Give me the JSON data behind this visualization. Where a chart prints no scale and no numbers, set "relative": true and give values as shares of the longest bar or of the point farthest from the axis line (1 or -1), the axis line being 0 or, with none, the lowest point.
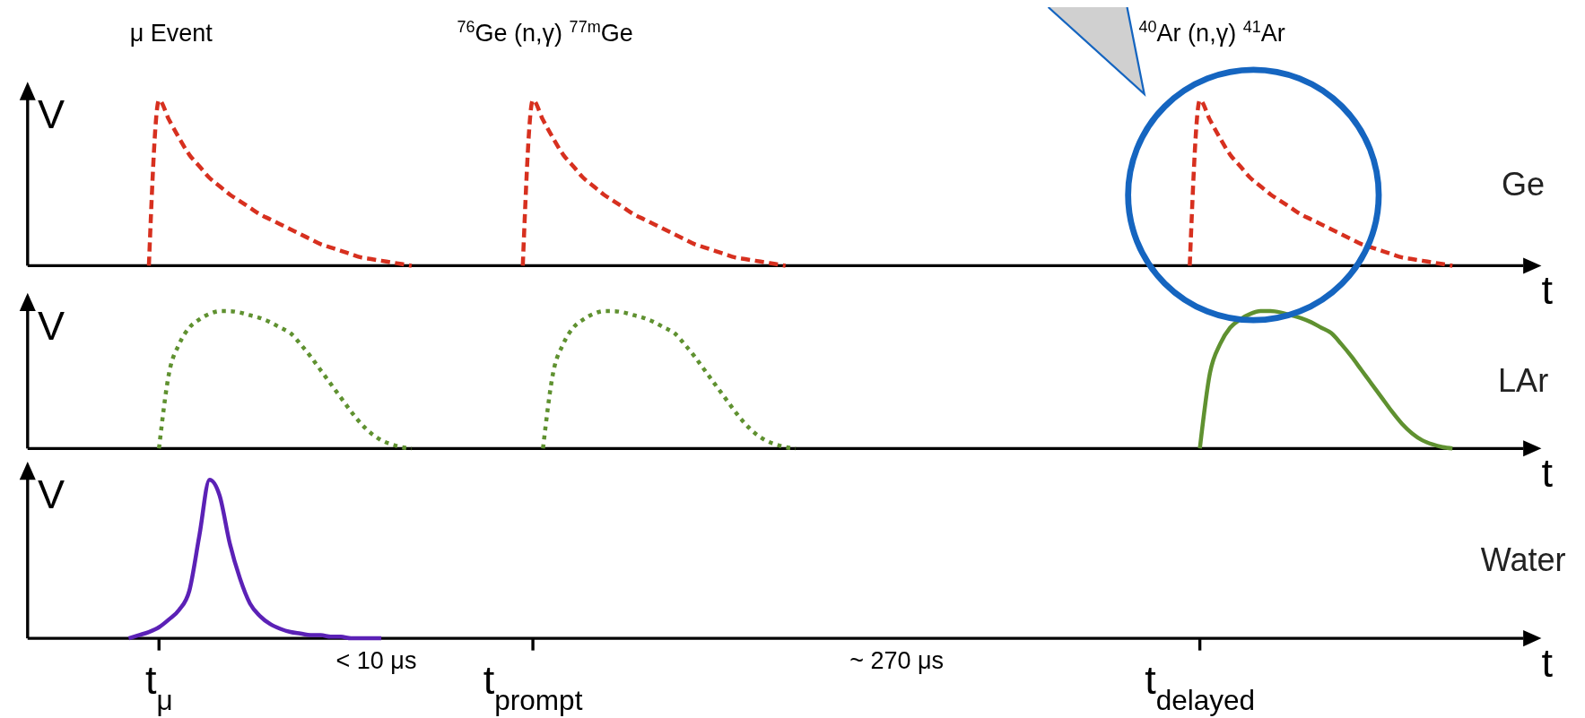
{
  "chart_data": [
    {
      "type": "line",
      "title": "Ge",
      "ylabel": "V",
      "xlabel": "t",
      "relative": true,
      "tick_labels": false,
      "line_style": "dashed",
      "categories": [
        null,
        null,
        null,
        null,
        null,
        null,
        null,
        null,
        null,
        null,
        null,
        null,
        null,
        null,
        null,
        null,
        null,
        null,
        null,
        null,
        null,
        null,
        null,
        null,
        null,
        null,
        null,
        null,
        null,
        null,
        null,
        null,
        null,
        null,
        null,
        null,
        null,
        null,
        null,
        null,
        null,
        null,
        null,
        null,
        null,
        null,
        null,
        null,
        null,
        null,
        null,
        null,
        null,
        null,
        null,
        null,
        null,
        null,
        null,
        null,
        null,
        null,
        null,
        null,
        null,
        null,
        null,
        null,
        null,
        null,
        null,
        null,
        null,
        null,
        null,
        null,
        null,
        null,
        null,
        null,
        null,
        null,
        null,
        null,
        null,
        null,
        null,
        null,
        null,
        null,
        null,
        null,
        null,
        null,
        null,
        null,
        null,
        null,
        null,
        null,
        null,
        null,
        null,
        null,
        null,
        null,
        null,
        null,
        null,
        null,
        null,
        null,
        null,
        null,
        null,
        null,
        null,
        null,
        null,
        null,
        null,
        null,
        null,
        null,
        null,
        null,
        null,
        null,
        null,
        null,
        null,
        null,
        null,
        null,
        null,
        null,
        null,
        null,
        null,
        null,
        null,
        null,
        null,
        null,
        null,
        null,
        null,
        null,
        null
      ],
      "annotations": [
        "μ Event",
        "$^{76}$Ge (n,γ) $^{77m}$Ge",
        "$^{40}$Ar (n,γ) $^{41}$Ar"
      ],
      "series": [
        {
          "color": "#d7301f",
          "values": [
            null,
            null,
            null,
            null,
            null,
            null,
            null,
            null,
            null,
            null,
            null,
            null,
            0,
            1,
            0.88,
            0.77,
            0.67,
            0.6,
            0.53,
            0.48,
            0.43,
            0.39,
            0.35,
            0.31,
            0.28,
            0.25,
            0.22,
            0.19,
            0.16,
            0.13,
            0.11,
            0.09,
            0.07,
            0.05,
            0.04,
            0.03,
            0.02,
            0.01,
            0,
            null,
            null,
            null,
            null,
            null,
            null,
            null,
            null,
            null,
            null,
            null,
            null,
            null,
            null,
            null,
            null,
            null,
            null,
            null,
            null,
            null,
            null,
            null,
            null,
            null,
            null,
            null,
            null,
            null,
            null,
            null,
            null,
            null,
            null,
            null,
            null,
            null,
            null,
            null,
            null,
            null,
            null,
            null,
            null,
            null,
            null,
            null,
            null,
            null,
            null,
            null,
            null,
            null,
            null,
            null,
            null,
            null,
            null,
            null,
            null,
            null,
            null,
            null,
            null,
            null,
            null,
            null,
            null,
            null,
            null,
            null,
            null,
            null,
            null,
            null,
            null,
            null,
            null,
            null,
            null,
            null,
            null,
            null,
            null,
            null,
            null,
            null,
            null,
            null,
            null,
            null,
            null,
            null,
            null,
            null,
            null,
            null,
            null,
            null,
            null,
            null,
            null,
            null,
            null,
            null,
            null,
            null,
            null,
            null,
            null
          ]
        },
        {
          "color": "#d7301f",
          "values": [
            null,
            null,
            null,
            null,
            null,
            null,
            null,
            null,
            null,
            null,
            null,
            null,
            null,
            null,
            null,
            null,
            null,
            null,
            null,
            null,
            null,
            null,
            null,
            null,
            null,
            null,
            null,
            null,
            null,
            null,
            null,
            null,
            null,
            null,
            null,
            null,
            null,
            null,
            null,
            null,
            null,
            null,
            null,
            null,
            null,
            null,
            null,
            null,
            null,
            0,
            1,
            0.88,
            0.77,
            0.67,
            0.6,
            0.53,
            0.48,
            0.43,
            0.39,
            0.35,
            0.31,
            0.28,
            0.25,
            0.22,
            0.19,
            0.16,
            0.13,
            0.11,
            0.09,
            0.07,
            0.05,
            0.04,
            0.03,
            0.02,
            0.01,
            0,
            null,
            null,
            null,
            null,
            null,
            null,
            null,
            null,
            null,
            null,
            null,
            null,
            null,
            null,
            null,
            null,
            null,
            null,
            null,
            null,
            null,
            null,
            null,
            null,
            null,
            null,
            null,
            null,
            null,
            null,
            null,
            null,
            null,
            null,
            null,
            null,
            null,
            null,
            null,
            null,
            null,
            null,
            null,
            null,
            null,
            null,
            null,
            null,
            null,
            null,
            null,
            null,
            null,
            null,
            null,
            null,
            null,
            null,
            null,
            null,
            null,
            null,
            null,
            null,
            null,
            null,
            null,
            null,
            null,
            null,
            null,
            null,
            null
          ]
        },
        {
          "color": "#d7301f",
          "values": [
            null,
            null,
            null,
            null,
            null,
            null,
            null,
            null,
            null,
            null,
            null,
            null,
            null,
            null,
            null,
            null,
            null,
            null,
            null,
            null,
            null,
            null,
            null,
            null,
            null,
            null,
            null,
            null,
            null,
            null,
            null,
            null,
            null,
            null,
            null,
            null,
            null,
            null,
            null,
            null,
            null,
            null,
            null,
            null,
            null,
            null,
            null,
            null,
            null,
            null,
            null,
            null,
            null,
            null,
            null,
            null,
            null,
            null,
            null,
            null,
            null,
            null,
            null,
            null,
            null,
            null,
            null,
            null,
            null,
            null,
            null,
            null,
            null,
            null,
            null,
            null,
            null,
            null,
            null,
            null,
            null,
            null,
            null,
            null,
            null,
            null,
            null,
            null,
            null,
            null,
            null,
            null,
            null,
            null,
            null,
            null,
            null,
            null,
            null,
            null,
            null,
            null,
            null,
            null,
            null,
            null,
            null,
            null,
            null,
            null,
            null,
            null,
            null,
            null,
            null,
            0,
            1,
            0.88,
            0.77,
            0.67,
            0.6,
            0.53,
            0.48,
            0.43,
            0.39,
            0.35,
            0.31,
            0.28,
            0.25,
            0.22,
            0.19,
            0.16,
            0.13,
            0.11,
            0.09,
            0.07,
            0.05,
            0.04,
            0.03,
            0.02,
            0.01,
            0,
            null,
            null,
            null,
            null,
            null,
            null,
            null
          ]
        }
      ]
    },
    {
      "type": "line",
      "title": "LAr",
      "ylabel": "V",
      "xlabel": "t",
      "relative": true,
      "tick_labels": false,
      "categories": [
        null,
        null,
        null,
        null,
        null,
        null,
        null,
        null,
        null,
        null,
        null,
        null,
        null,
        null,
        null,
        null,
        null,
        null,
        null,
        null,
        null,
        null,
        null,
        null,
        null,
        null,
        null,
        null,
        null,
        null,
        null,
        null,
        null,
        null,
        null,
        null,
        null,
        null,
        null,
        null,
        null,
        null,
        null,
        null,
        null,
        null,
        null,
        null,
        null,
        null,
        null,
        null,
        null,
        null,
        null,
        null,
        null,
        null,
        null,
        null,
        null,
        null,
        null,
        null,
        null,
        null,
        null,
        null,
        null,
        null,
        null,
        null,
        null,
        null,
        null,
        null,
        null,
        null,
        null,
        null,
        null,
        null,
        null,
        null,
        null,
        null,
        null,
        null,
        null,
        null,
        null,
        null,
        null,
        null,
        null,
        null,
        null,
        null,
        null,
        null,
        null,
        null,
        null,
        null,
        null,
        null,
        null,
        null,
        null,
        null,
        null,
        null,
        null,
        null,
        null,
        null,
        null,
        null,
        null,
        null,
        null,
        null,
        null,
        null,
        null,
        null,
        null,
        null,
        null,
        null,
        null,
        null,
        null,
        null,
        null,
        null,
        null,
        null,
        null,
        null,
        null,
        null,
        null,
        null,
        null,
        null,
        null,
        null,
        null
      ],
      "series": [
        {
          "color": "#5f9130",
          "line_style": "dotted",
          "values": [
            null,
            null,
            null,
            null,
            null,
            null,
            null,
            null,
            null,
            null,
            null,
            null,
            null,
            0,
            0.55,
            0.76,
            0.88,
            0.94,
            0.98,
            1,
            1,
            0.99,
            0.97,
            0.95,
            0.92,
            0.88,
            0.84,
            0.76,
            0.67,
            0.57,
            0.47,
            0.37,
            0.27,
            0.18,
            0.11,
            0.06,
            0.03,
            0.01,
            0,
            null,
            null,
            null,
            null,
            null,
            null,
            null,
            null,
            null,
            null,
            null,
            null,
            null,
            null,
            null,
            null,
            null,
            null,
            null,
            null,
            null,
            null,
            null,
            null,
            null,
            null,
            null,
            null,
            null,
            null,
            null,
            null,
            null,
            null,
            null,
            null,
            null,
            null,
            null,
            null,
            null,
            null,
            null,
            null,
            null,
            null,
            null,
            null,
            null,
            null,
            null,
            null,
            null,
            null,
            null,
            null,
            null,
            null,
            null,
            null,
            null,
            null,
            null,
            null,
            null,
            null,
            null,
            null,
            null,
            null,
            null,
            null,
            null,
            null,
            null,
            null,
            null,
            null,
            null,
            null,
            null,
            null,
            null,
            null,
            null,
            null,
            null,
            null,
            null,
            null,
            null,
            null,
            null,
            null,
            null,
            null,
            null,
            null,
            null,
            null,
            null,
            null,
            null,
            null,
            null,
            null,
            null,
            null,
            null,
            null
          ]
        },
        {
          "color": "#5f9130",
          "line_style": "dotted",
          "values": [
            null,
            null,
            null,
            null,
            null,
            null,
            null,
            null,
            null,
            null,
            null,
            null,
            null,
            null,
            null,
            null,
            null,
            null,
            null,
            null,
            null,
            null,
            null,
            null,
            null,
            null,
            null,
            null,
            null,
            null,
            null,
            null,
            null,
            null,
            null,
            null,
            null,
            null,
            null,
            null,
            null,
            null,
            null,
            null,
            null,
            null,
            null,
            null,
            null,
            null,
            null,
            0,
            0.55,
            0.76,
            0.88,
            0.94,
            0.98,
            1,
            1,
            0.99,
            0.97,
            0.95,
            0.92,
            0.88,
            0.84,
            0.76,
            0.67,
            0.57,
            0.47,
            0.37,
            0.27,
            0.18,
            0.11,
            0.06,
            0.03,
            0.01,
            0,
            null,
            null,
            null,
            null,
            null,
            null,
            null,
            null,
            null,
            null,
            null,
            null,
            null,
            null,
            null,
            null,
            null,
            null,
            null,
            null,
            null,
            null,
            null,
            null,
            null,
            null,
            null,
            null,
            null,
            null,
            null,
            null,
            null,
            null,
            null,
            null,
            null,
            null,
            null,
            null,
            null,
            null,
            null,
            null,
            null,
            null,
            null,
            null,
            null,
            null,
            null,
            null,
            null,
            null,
            null,
            null,
            null,
            null,
            null,
            null,
            null,
            null,
            null,
            null,
            null,
            null,
            null,
            null,
            null,
            null,
            null,
            null
          ]
        },
        {
          "color": "#5f9130",
          "line_style": "solid",
          "values": [
            null,
            null,
            null,
            null,
            null,
            null,
            null,
            null,
            null,
            null,
            null,
            null,
            null,
            null,
            null,
            null,
            null,
            null,
            null,
            null,
            null,
            null,
            null,
            null,
            null,
            null,
            null,
            null,
            null,
            null,
            null,
            null,
            null,
            null,
            null,
            null,
            null,
            null,
            null,
            null,
            null,
            null,
            null,
            null,
            null,
            null,
            null,
            null,
            null,
            null,
            null,
            null,
            null,
            null,
            null,
            null,
            null,
            null,
            null,
            null,
            null,
            null,
            null,
            null,
            null,
            null,
            null,
            null,
            null,
            null,
            null,
            null,
            null,
            null,
            null,
            null,
            null,
            null,
            null,
            null,
            null,
            null,
            null,
            null,
            null,
            null,
            null,
            null,
            null,
            null,
            null,
            null,
            null,
            null,
            null,
            null,
            null,
            null,
            null,
            null,
            null,
            null,
            null,
            null,
            null,
            null,
            null,
            null,
            null,
            null,
            null,
            null,
            null,
            null,
            null,
            null,
            0,
            0.55,
            0.76,
            0.88,
            0.94,
            0.98,
            1,
            1,
            0.99,
            0.97,
            0.95,
            0.92,
            0.88,
            0.84,
            0.76,
            0.67,
            0.57,
            0.47,
            0.37,
            0.27,
            0.18,
            0.11,
            0.06,
            0.03,
            0.01,
            0,
            null,
            null,
            null,
            null,
            null,
            null,
            null
          ]
        }
      ]
    },
    {
      "type": "line",
      "title": "Water",
      "ylabel": "V",
      "xlabel": "t",
      "relative": true,
      "tick_labels": "x",
      "line_style": "solid",
      "categories": [
        null,
        null,
        null,
        null,
        null,
        null,
        null,
        null,
        null,
        null,
        null,
        null,
        null,
        "t$_{μ}$",
        null,
        null,
        null,
        null,
        null,
        null,
        null,
        null,
        null,
        null,
        null,
        null,
        null,
        null,
        null,
        null,
        null,
        null,
        null,
        null,
        null,
        null,
        null,
        null,
        null,
        null,
        null,
        null,
        null,
        null,
        null,
        null,
        null,
        null,
        null,
        null,
        "t$_{prompt}$",
        null,
        null,
        null,
        null,
        null,
        null,
        null,
        null,
        null,
        null,
        null,
        null,
        null,
        null,
        null,
        null,
        null,
        null,
        null,
        null,
        null,
        null,
        null,
        null,
        null,
        null,
        null,
        null,
        null,
        null,
        null,
        null,
        null,
        null,
        null,
        null,
        null,
        null,
        null,
        null,
        null,
        null,
        null,
        null,
        null,
        null,
        null,
        null,
        null,
        null,
        null,
        null,
        null,
        null,
        null,
        null,
        null,
        null,
        null,
        null,
        null,
        null,
        null,
        null,
        null,
        "t$_{delayed}$",
        null,
        null,
        null,
        null,
        null,
        null,
        null,
        null,
        null,
        null,
        null,
        null,
        null,
        null,
        null,
        null,
        null,
        null,
        null,
        null,
        null,
        null,
        null,
        null,
        null,
        null,
        null,
        null,
        null,
        null,
        null,
        null
      ],
      "annotations": [
        "< 10 μs",
        "~ 270 μs"
      ],
      "series": [
        {
          "color": "#5b21b6",
          "values": [
            null,
            null,
            null,
            null,
            null,
            null,
            null,
            null,
            null,
            null,
            0,
            0.02,
            0.04,
            0.07,
            0.12,
            0.18,
            0.3,
            0.65,
            1,
            0.9,
            0.6,
            0.38,
            0.22,
            0.14,
            0.09,
            0.06,
            0.04,
            0.03,
            0.02,
            0.02,
            0.01,
            0.01,
            0,
            0,
            0,
            0,
            null,
            null,
            null,
            null,
            null,
            null,
            null,
            null,
            null,
            null,
            null,
            null,
            null,
            null,
            null,
            null,
            null,
            null,
            null,
            null,
            null,
            null,
            null,
            null,
            null,
            null,
            null,
            null,
            null,
            null,
            null,
            null,
            null,
            null,
            null,
            null,
            null,
            null,
            null,
            null,
            null,
            null,
            null,
            null,
            null,
            null,
            null,
            null,
            null,
            null,
            null,
            null,
            null,
            null,
            null,
            null,
            null,
            null,
            null,
            null,
            null,
            null,
            null,
            null,
            null,
            null,
            null,
            null,
            null,
            null,
            null,
            null,
            null,
            null,
            null,
            null,
            null,
            null,
            null,
            null,
            null,
            null,
            null,
            null,
            null,
            null,
            null,
            null,
            null,
            null,
            null,
            null,
            null,
            null,
            null,
            null,
            null,
            null,
            null,
            null,
            null,
            null,
            null,
            null,
            null,
            null,
            null,
            null,
            null,
            null,
            null,
            null,
            null
          ]
        }
      ]
    }
  ]
}
